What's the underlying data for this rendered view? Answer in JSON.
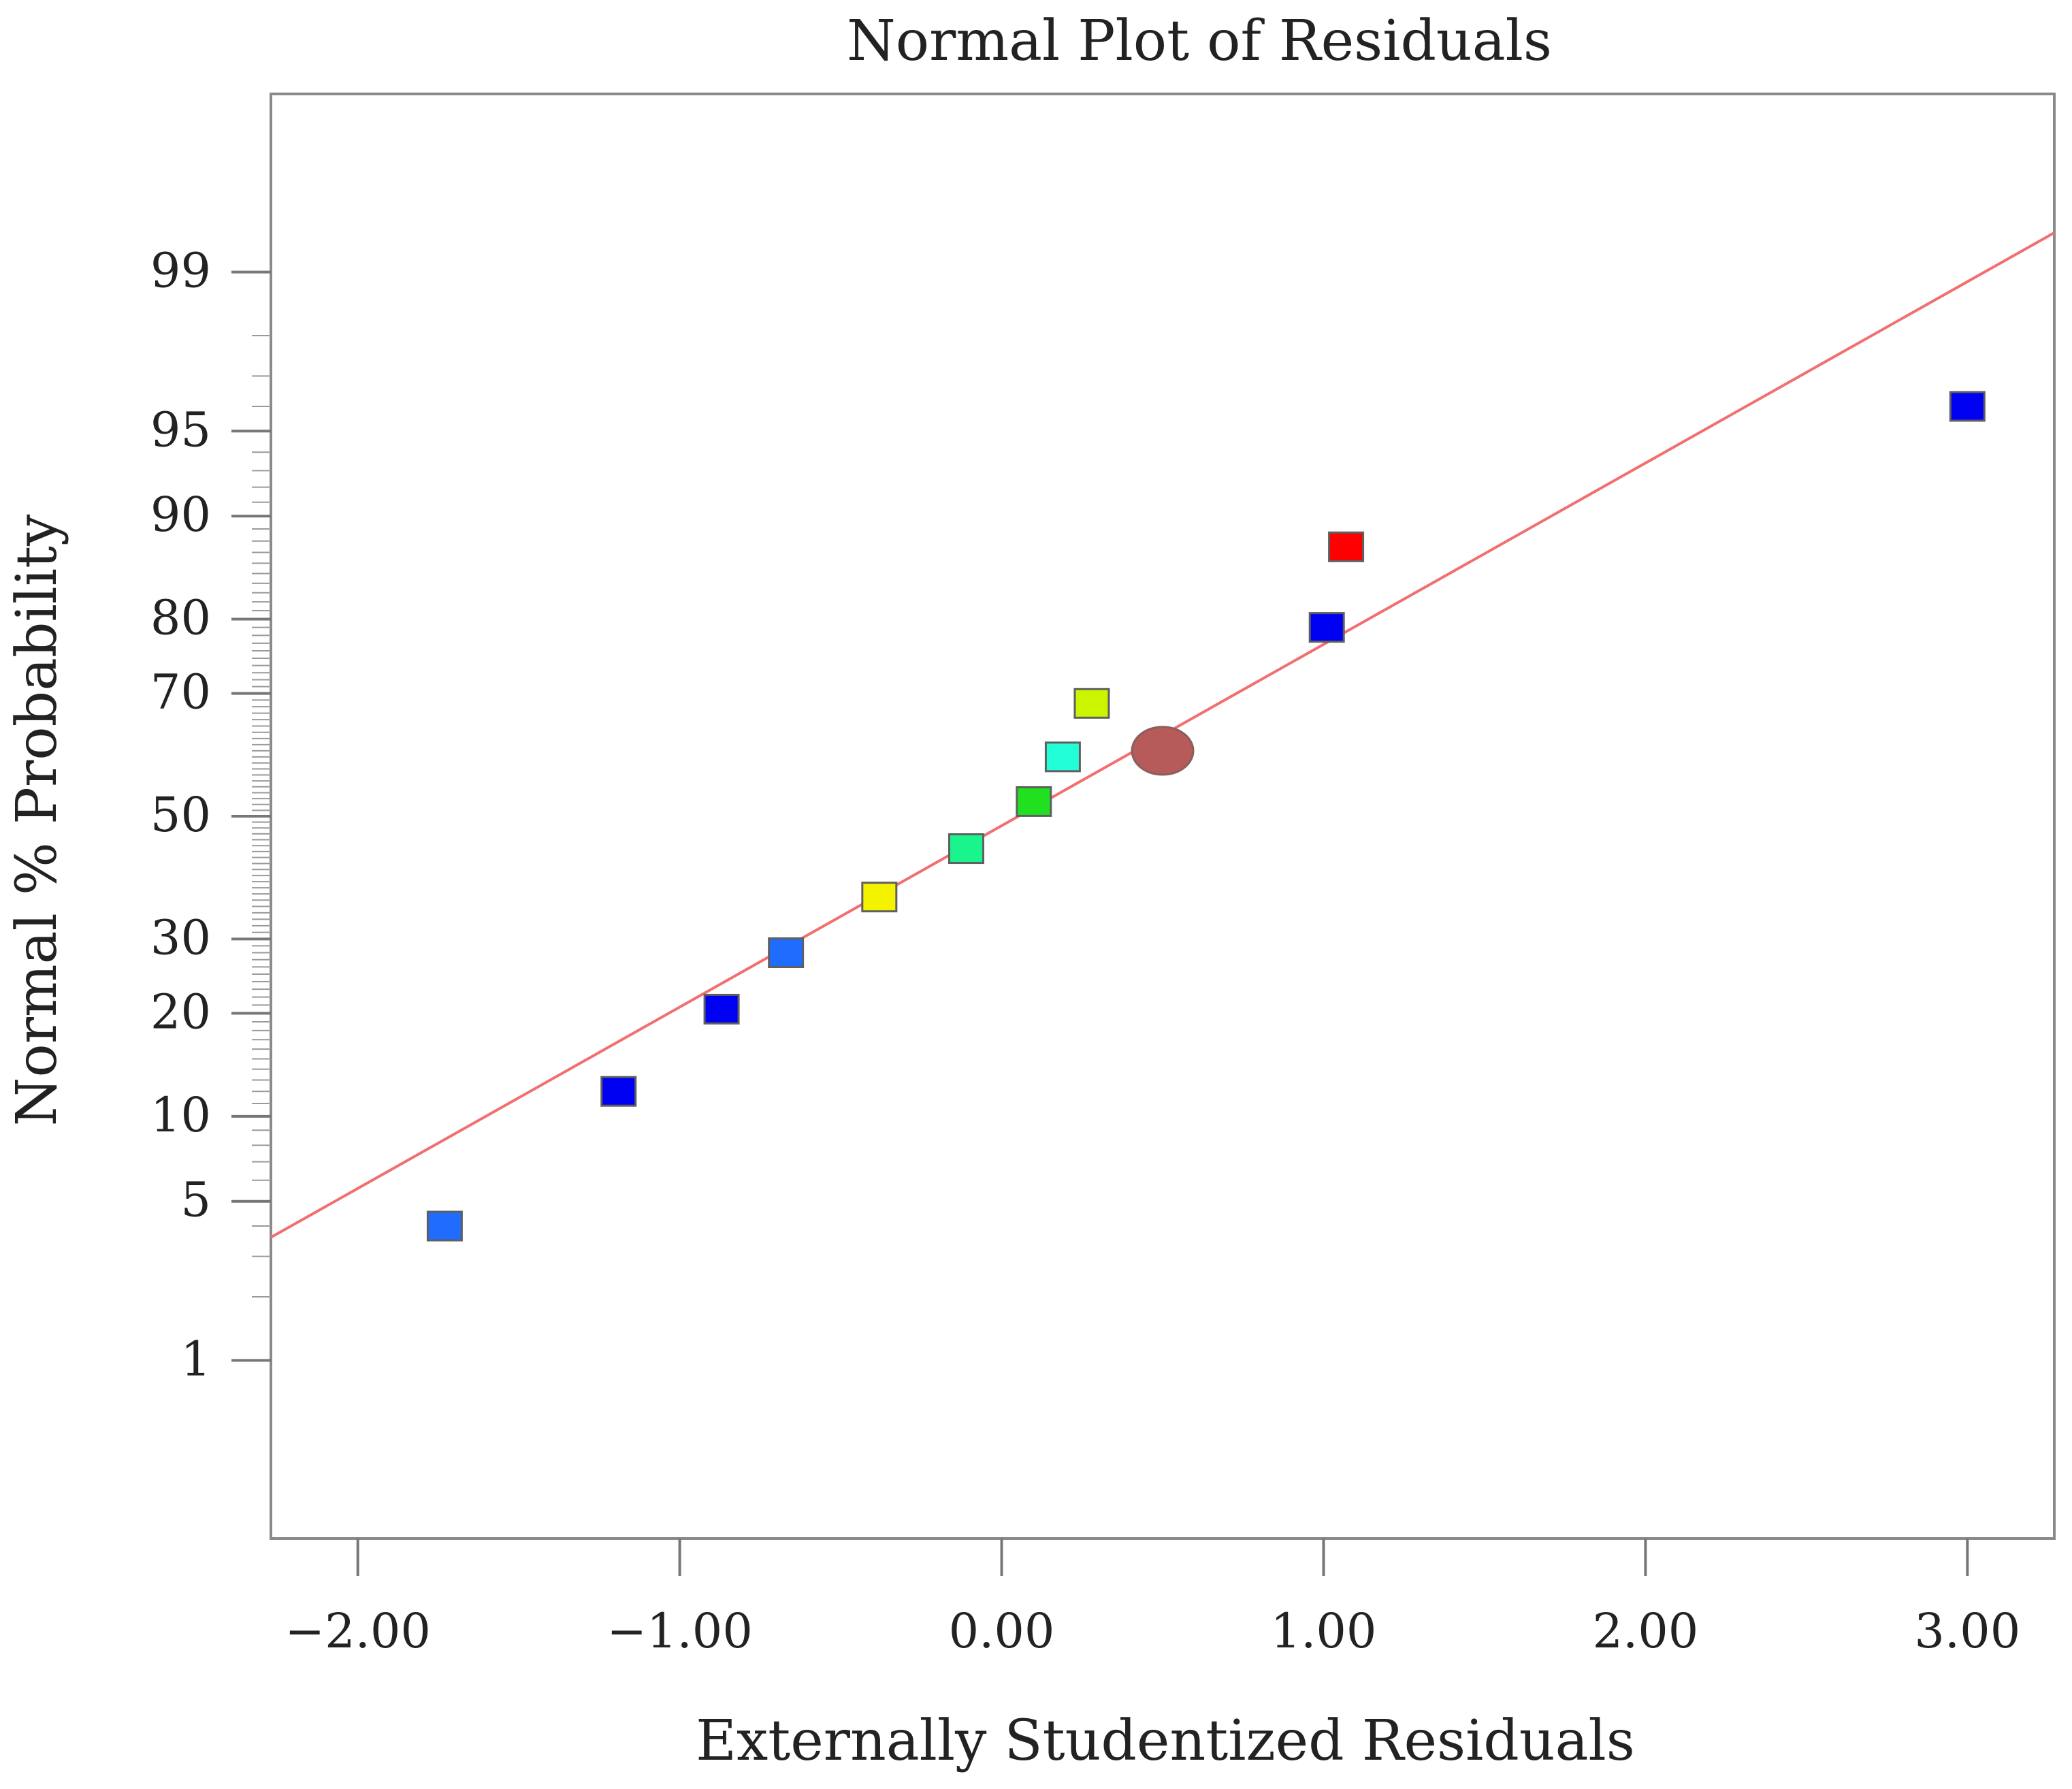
{
  "chart_data": {
    "type": "scatter",
    "title": "Normal Plot of Residuals",
    "xlabel": "Externally Studentized Residuals",
    "ylabel": "Normal % Probability",
    "xlim": [
      -2.27,
      3.27
    ],
    "ylim_probability_scale": [
      0.1,
      99.9
    ],
    "x_ticks": [
      {
        "value": -2,
        "label": "−2.00"
      },
      {
        "value": -1,
        "label": "−1.00"
      },
      {
        "value": 0,
        "label": "0.00"
      },
      {
        "value": 1,
        "label": "1.00"
      },
      {
        "value": 2,
        "label": "2.00"
      },
      {
        "value": 3,
        "label": "3.00"
      }
    ],
    "y_ticks": [
      {
        "value": 1,
        "label": "1"
      },
      {
        "value": 5,
        "label": "5"
      },
      {
        "value": 10,
        "label": "10"
      },
      {
        "value": 20,
        "label": "20"
      },
      {
        "value": 30,
        "label": "30"
      },
      {
        "value": 50,
        "label": "50"
      },
      {
        "value": 70,
        "label": "70"
      },
      {
        "value": 80,
        "label": "80"
      },
      {
        "value": 90,
        "label": "90"
      },
      {
        "value": 95,
        "label": "95"
      },
      {
        "value": 99,
        "label": "99"
      }
    ],
    "series": [
      {
        "name": "Residuals",
        "points": [
          {
            "x": -1.73,
            "y": 4.0,
            "color": "#1f6cff"
          },
          {
            "x": -1.19,
            "y": 12.0,
            "color": "#0000f2"
          },
          {
            "x": -0.87,
            "y": 20.5,
            "color": "#0000f2"
          },
          {
            "x": -0.67,
            "y": 28.0,
            "color": "#1f6cff"
          },
          {
            "x": -0.38,
            "y": 36.5,
            "color": "#f3f300"
          },
          {
            "x": -0.11,
            "y": 44.5,
            "color": "#19f58c"
          },
          {
            "x": 0.1,
            "y": 52.5,
            "color": "#20e020"
          },
          {
            "x": 0.19,
            "y": 60.0,
            "color": "#22ffd8"
          },
          {
            "x": 0.28,
            "y": 68.5,
            "color": "#c9f500"
          },
          {
            "x": 1.01,
            "y": 79.0,
            "color": "#0000f2"
          },
          {
            "x": 1.07,
            "y": 87.5,
            "color": "#ff0000"
          },
          {
            "x": 3.0,
            "y": 96.0,
            "color": "#0000f2"
          }
        ]
      }
    ],
    "highlight_point": {
      "x": 0.5,
      "y": 61.0,
      "color": "#b75a5a"
    },
    "reference_line": {
      "x1": -2.27,
      "y1": 3.6,
      "x2": 3.27,
      "y2": 99.37,
      "color": "#f26f6f"
    }
  }
}
